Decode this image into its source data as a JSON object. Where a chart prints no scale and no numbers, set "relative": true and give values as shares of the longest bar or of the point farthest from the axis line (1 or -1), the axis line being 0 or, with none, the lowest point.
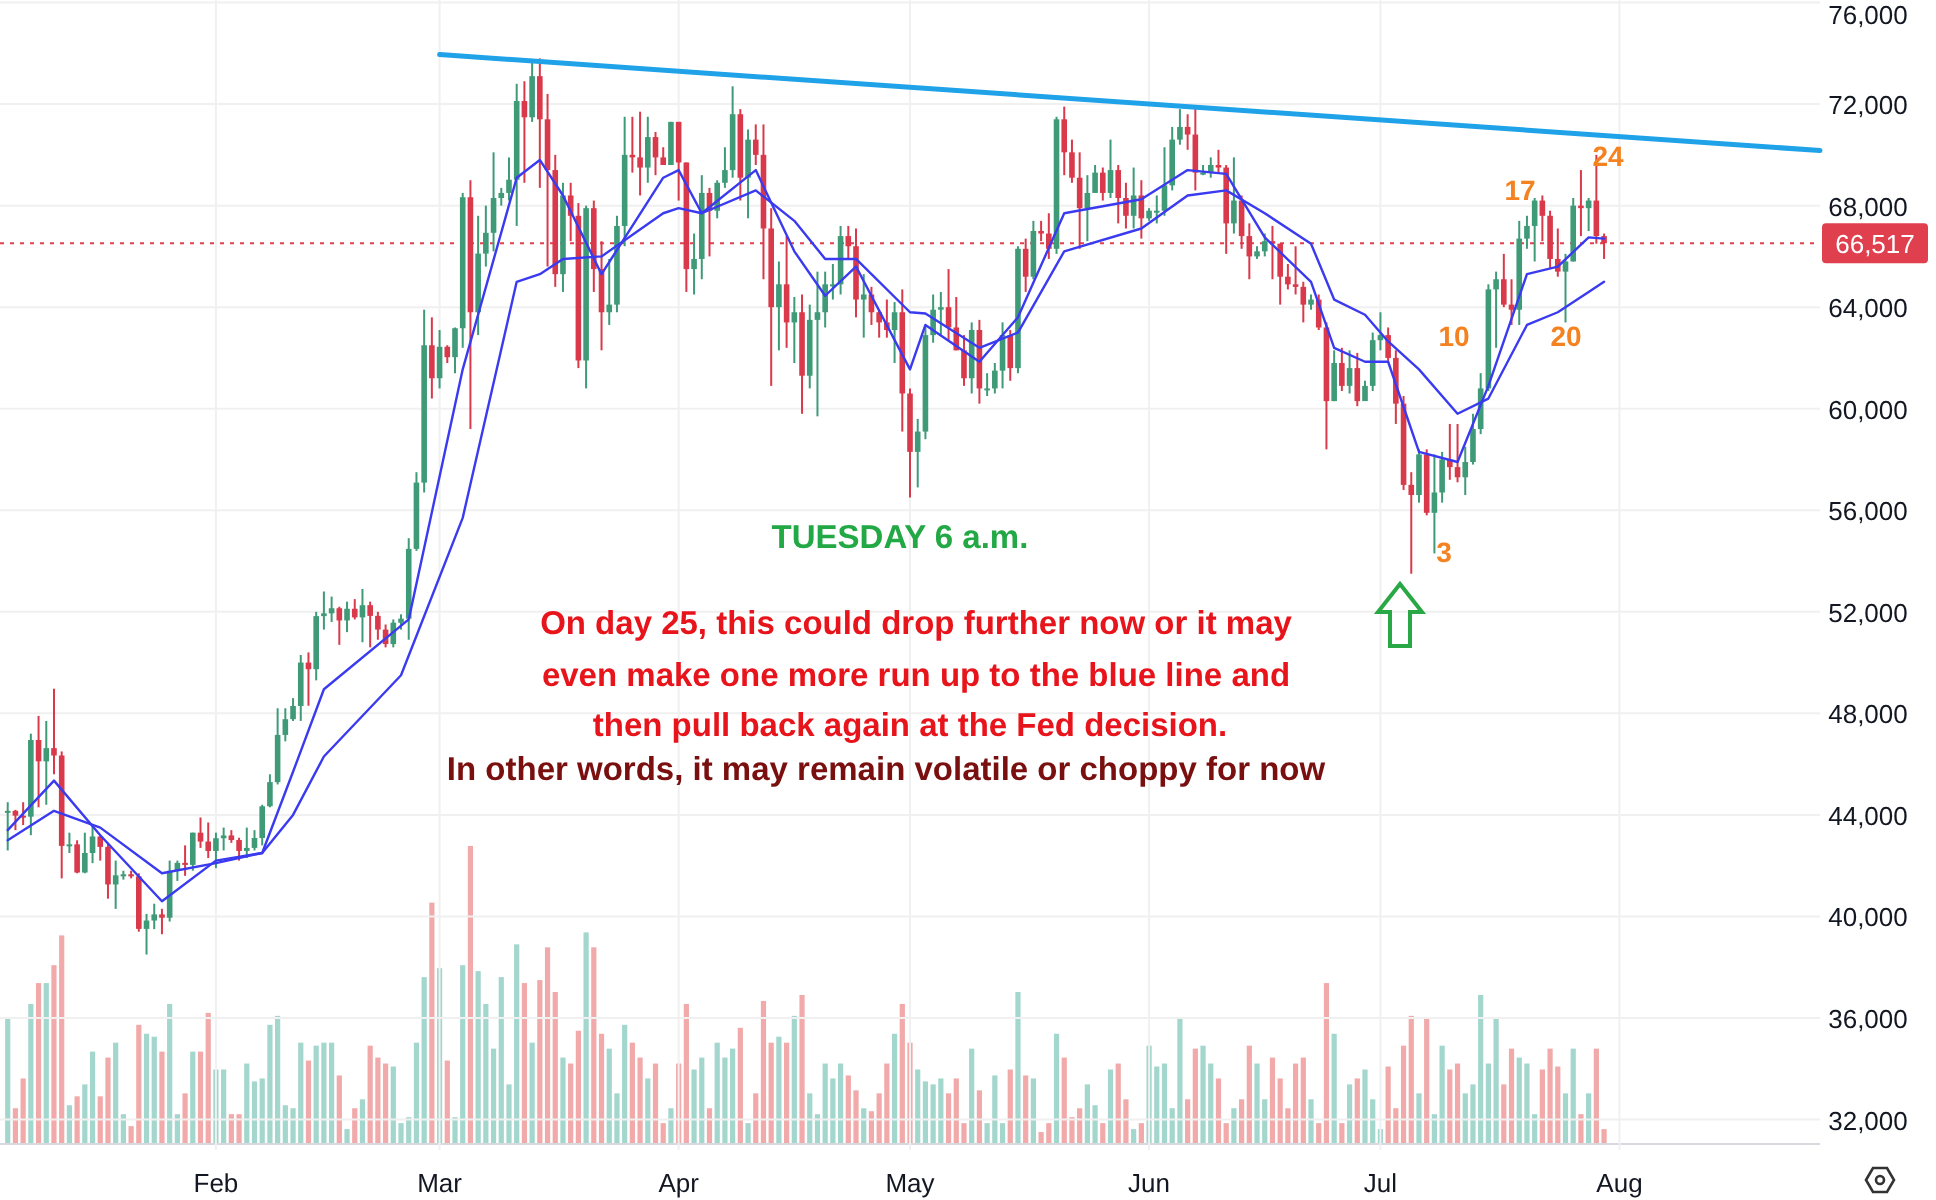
{
  "chart_data": [
    {
      "type": "candlestick",
      "xlim": [
        "--01-04",
        "--08-27"
      ],
      "ylim": [
        30800,
        76100
      ],
      "xticks": [
        {
          "value": "--02-01",
          "label": "Feb"
        },
        {
          "value": "--03-01",
          "label": "Mar"
        },
        {
          "value": "--04-01",
          "label": "Apr"
        },
        {
          "value": "--05-01",
          "label": "May"
        },
        {
          "value": "--06-01",
          "label": "Jun"
        },
        {
          "value": "--07-01",
          "label": "Jul"
        },
        {
          "value": "--08-01",
          "label": "Aug"
        }
      ],
      "yticks": [
        {
          "value": 32000,
          "label": "32,000"
        },
        {
          "value": 36000,
          "label": "36,000"
        },
        {
          "value": 40000,
          "label": "40,000"
        },
        {
          "value": 44000,
          "label": "44,000"
        },
        {
          "value": 48000,
          "label": "48,000"
        },
        {
          "value": 52000,
          "label": "52,000"
        },
        {
          "value": 56000,
          "label": "56,000"
        },
        {
          "value": 60000,
          "label": "60,000"
        },
        {
          "value": 64000,
          "label": "64,000"
        },
        {
          "value": 68000,
          "label": "68,000"
        },
        {
          "value": 72000,
          "label": "72,000"
        },
        {
          "value": 76000,
          "label": "76,000"
        }
      ],
      "grid": true,
      "x": [
        "--01-05",
        "--01-06",
        "--01-07",
        "--01-08",
        "--01-09",
        "--01-10",
        "--01-11",
        "--01-12",
        "--01-13",
        "--01-14",
        "--01-15",
        "--01-16",
        "--01-17",
        "--01-18",
        "--01-19",
        "--01-20",
        "--01-21",
        "--01-22",
        "--01-23",
        "--01-24",
        "--01-25",
        "--01-26",
        "--01-27",
        "--01-28",
        "--01-29",
        "--01-30",
        "--01-31",
        "--02-01",
        "--02-02",
        "--02-03",
        "--02-04",
        "--02-05",
        "--02-06",
        "--02-07",
        "--02-08",
        "--02-09",
        "--02-10",
        "--02-11",
        "--02-12",
        "--02-13",
        "--02-14",
        "--02-15",
        "--02-16",
        "--02-17",
        "--02-18",
        "--02-19",
        "--02-20",
        "--02-21",
        "--02-22",
        "--02-23",
        "--02-24",
        "--02-25",
        "--02-26",
        "--02-27",
        "--02-28",
        "--02-29",
        "--03-01",
        "--03-02",
        "--03-03",
        "--03-04",
        "--03-05",
        "--03-06",
        "--03-07",
        "--03-08",
        "--03-09",
        "--03-10",
        "--03-11",
        "--03-12",
        "--03-13",
        "--03-14",
        "--03-15",
        "--03-16",
        "--03-17",
        "--03-18",
        "--03-19",
        "--03-20",
        "--03-21",
        "--03-22",
        "--03-23",
        "--03-24",
        "--03-25",
        "--03-26",
        "--03-27",
        "--03-28",
        "--03-29",
        "--03-30",
        "--03-31",
        "--04-01",
        "--04-02",
        "--04-03",
        "--04-04",
        "--04-05",
        "--04-06",
        "--04-07",
        "--04-08",
        "--04-09",
        "--04-10",
        "--04-11",
        "--04-12",
        "--04-13",
        "--04-14",
        "--04-15",
        "--04-16",
        "--04-17",
        "--04-18",
        "--04-19",
        "--04-20",
        "--04-21",
        "--04-22",
        "--04-23",
        "--04-24",
        "--04-25",
        "--04-26",
        "--04-27",
        "--04-28",
        "--04-29",
        "--04-30",
        "--05-01",
        "--05-02",
        "--05-03",
        "--05-04",
        "--05-05",
        "--05-06",
        "--05-07",
        "--05-08",
        "--05-09",
        "--05-10",
        "--05-11",
        "--05-12",
        "--05-13",
        "--05-14",
        "--05-15",
        "--05-16",
        "--05-17",
        "--05-18",
        "--05-19",
        "--05-20",
        "--05-21",
        "--05-22",
        "--05-23",
        "--05-24",
        "--05-25",
        "--05-26",
        "--05-27",
        "--05-28",
        "--05-29",
        "--05-30",
        "--05-31",
        "--06-01",
        "--06-02",
        "--06-03",
        "--06-04",
        "--06-05",
        "--06-06",
        "--06-07",
        "--06-08",
        "--06-09",
        "--06-10",
        "--06-11",
        "--06-12",
        "--06-13",
        "--06-14",
        "--06-15",
        "--06-16",
        "--06-17",
        "--06-18",
        "--06-19",
        "--06-20",
        "--06-21",
        "--06-22",
        "--06-23",
        "--06-24",
        "--06-25",
        "--06-26",
        "--06-27",
        "--06-28",
        "--06-29",
        "--06-30",
        "--07-01",
        "--07-02",
        "--07-03",
        "--07-04",
        "--07-05",
        "--07-06",
        "--07-07",
        "--07-08",
        "--07-09",
        "--07-10",
        "--07-11",
        "--07-12",
        "--07-13",
        "--07-14",
        "--07-15",
        "--07-16",
        "--07-17",
        "--07-18",
        "--07-19",
        "--07-20",
        "--07-21",
        "--07-22",
        "--07-23",
        "--07-24",
        "--07-25",
        "--07-26",
        "--07-27",
        "--07-28",
        "--07-29",
        "--07-30"
      ],
      "ohlc": [
        [
          44150,
          44500,
          42600,
          44160
        ],
        [
          44160,
          44200,
          43400,
          43970
        ],
        [
          43970,
          44500,
          43600,
          43930
        ],
        [
          43930,
          47200,
          43200,
          46950
        ],
        [
          46950,
          47900,
          44300,
          46110
        ],
        [
          46110,
          47700,
          44400,
          46630
        ],
        [
          46630,
          48970,
          45600,
          46340
        ],
        [
          46340,
          46500,
          41500,
          42780
        ],
        [
          42780,
          43300,
          42500,
          42840
        ],
        [
          42840,
          43000,
          41700,
          41730
        ],
        [
          41730,
          43300,
          41700,
          42500
        ],
        [
          42500,
          43600,
          42100,
          43150
        ],
        [
          43150,
          43200,
          42200,
          42740
        ],
        [
          42740,
          42900,
          40700,
          41260
        ],
        [
          41260,
          42200,
          40300,
          41620
        ],
        [
          41620,
          41800,
          41450,
          41660
        ],
        [
          41660,
          41800,
          41500,
          41580
        ],
        [
          41580,
          41700,
          39400,
          39510
        ],
        [
          39510,
          40100,
          38500,
          39840
        ],
        [
          39840,
          40500,
          39500,
          40080
        ],
        [
          40080,
          40300,
          39300,
          39950
        ],
        [
          39950,
          42200,
          39800,
          41800
        ],
        [
          41800,
          42200,
          41400,
          42110
        ],
        [
          42110,
          42800,
          41600,
          42030
        ],
        [
          42030,
          43300,
          41800,
          43300
        ],
        [
          43300,
          43900,
          42700,
          42950
        ],
        [
          42950,
          43700,
          42300,
          42580
        ],
        [
          42580,
          43300,
          41900,
          43080
        ],
        [
          43080,
          43500,
          42600,
          43190
        ],
        [
          43190,
          43400,
          42900,
          43010
        ],
        [
          43010,
          43100,
          42200,
          42580
        ],
        [
          42580,
          43500,
          42300,
          42700
        ],
        [
          42700,
          43400,
          42600,
          43090
        ],
        [
          43090,
          44400,
          42800,
          44340
        ],
        [
          44340,
          45600,
          44300,
          45290
        ],
        [
          45290,
          48200,
          45200,
          47150
        ],
        [
          47150,
          48200,
          46900,
          47770
        ],
        [
          47770,
          48600,
          47700,
          48290
        ],
        [
          48290,
          50300,
          47700,
          50000
        ],
        [
          50000,
          50400,
          48300,
          49740
        ],
        [
          49740,
          52000,
          49300,
          51830
        ],
        [
          51830,
          52800,
          51300,
          51940
        ],
        [
          51940,
          52600,
          51600,
          52140
        ],
        [
          52140,
          52200,
          50700,
          51660
        ],
        [
          51660,
          52400,
          51200,
          52120
        ],
        [
          52120,
          52500,
          51700,
          51780
        ],
        [
          51780,
          52900,
          50800,
          52260
        ],
        [
          52260,
          52400,
          50600,
          51840
        ],
        [
          51840,
          52000,
          50900,
          51300
        ],
        [
          51300,
          51500,
          50600,
          50730
        ],
        [
          50730,
          51700,
          50600,
          51570
        ],
        [
          51570,
          51900,
          51300,
          51730
        ],
        [
          51730,
          54900,
          50900,
          54480
        ],
        [
          54480,
          57500,
          54400,
          57090
        ],
        [
          57090,
          63900,
          56700,
          62500
        ],
        [
          62500,
          63600,
          60400,
          61200
        ],
        [
          61200,
          63100,
          60800,
          62440
        ],
        [
          62440,
          62500,
          61800,
          62030
        ],
        [
          62030,
          63200,
          61400,
          63170
        ],
        [
          63170,
          68500,
          62400,
          68330
        ],
        [
          68330,
          69000,
          59200,
          63800
        ],
        [
          63800,
          67600,
          62900,
          66110
        ],
        [
          66110,
          68000,
          65600,
          66930
        ],
        [
          66930,
          70100,
          66200,
          68300
        ],
        [
          68300,
          68700,
          68000,
          68500
        ],
        [
          68500,
          69900,
          68200,
          69020
        ],
        [
          69020,
          72800,
          67200,
          72120
        ],
        [
          72120,
          72900,
          68900,
          71480
        ],
        [
          71480,
          73700,
          71300,
          73100
        ],
        [
          73100,
          73800,
          68700,
          71400
        ],
        [
          71400,
          72400,
          65600,
          69400
        ],
        [
          69400,
          70000,
          64800,
          65300
        ],
        [
          65300,
          68900,
          64600,
          68400
        ],
        [
          68400,
          68900,
          66600,
          67600
        ],
        [
          67600,
          68100,
          61600,
          61900
        ],
        [
          61900,
          68000,
          60800,
          67900
        ],
        [
          67900,
          68200,
          64600,
          65500
        ],
        [
          65500,
          66600,
          62300,
          63800
        ],
        [
          63800,
          65900,
          63300,
          64100
        ],
        [
          64100,
          67600,
          63800,
          67200
        ],
        [
          67200,
          71500,
          66400,
          70000
        ],
        [
          70000,
          71500,
          69300,
          69900
        ],
        [
          69900,
          71700,
          68400,
          69500
        ],
        [
          69500,
          71500,
          68900,
          70700
        ],
        [
          70700,
          70900,
          69200,
          69900
        ],
        [
          69900,
          70300,
          69600,
          69600
        ],
        [
          69600,
          71300,
          69600,
          71300
        ],
        [
          71300,
          71300,
          68200,
          69700
        ],
        [
          69700,
          69700,
          64600,
          65500
        ],
        [
          65500,
          66900,
          64500,
          65900
        ],
        [
          65900,
          69200,
          65100,
          68500
        ],
        [
          68500,
          68700,
          66000,
          67800
        ],
        [
          67800,
          69000,
          67500,
          68900
        ],
        [
          68900,
          70300,
          68700,
          69400
        ],
        [
          69400,
          72700,
          69100,
          71600
        ],
        [
          71600,
          71800,
          68200,
          69100
        ],
        [
          69100,
          71000,
          67500,
          70600
        ],
        [
          70600,
          71200,
          69600,
          70000
        ],
        [
          70000,
          71200,
          65100,
          67100
        ],
        [
          67100,
          67900,
          60900,
          64000
        ],
        [
          64000,
          65800,
          62300,
          64900
        ],
        [
          64900,
          66800,
          62400,
          63400
        ],
        [
          63400,
          64400,
          61800,
          63800
        ],
        [
          63800,
          64500,
          59800,
          61300
        ],
        [
          61300,
          64100,
          60800,
          63500
        ],
        [
          63500,
          65400,
          59700,
          63800
        ],
        [
          63800,
          65400,
          63200,
          64900
        ],
        [
          64900,
          65700,
          64300,
          64900
        ],
        [
          64900,
          67200,
          64500,
          66800
        ],
        [
          66800,
          67200,
          65900,
          66400
        ],
        [
          66400,
          67100,
          63600,
          64300
        ],
        [
          64300,
          65300,
          62800,
          64500
        ],
        [
          64500,
          64800,
          63300,
          63800
        ],
        [
          63800,
          63900,
          62800,
          63400
        ],
        [
          63400,
          64300,
          62800,
          63100
        ],
        [
          63100,
          64200,
          61800,
          63800
        ],
        [
          63800,
          64700,
          59100,
          60600
        ],
        [
          60600,
          60800,
          56500,
          58300
        ],
        [
          58300,
          59600,
          56900,
          59100
        ],
        [
          59100,
          63300,
          58800,
          62900
        ],
        [
          62900,
          64500,
          62600,
          63900
        ],
        [
          63900,
          64600,
          62900,
          64000
        ],
        [
          64000,
          65500,
          62700,
          63200
        ],
        [
          63200,
          64400,
          62300,
          62300
        ],
        [
          62300,
          62900,
          60900,
          61200
        ],
        [
          61200,
          63400,
          60600,
          63100
        ],
        [
          63100,
          63500,
          60200,
          60800
        ],
        [
          60800,
          61400,
          60500,
          60800
        ],
        [
          60800,
          61800,
          60600,
          61500
        ],
        [
          61500,
          63400,
          60800,
          62900
        ],
        [
          62900,
          63100,
          61100,
          61600
        ],
        [
          61600,
          66400,
          61400,
          66300
        ],
        [
          66300,
          66700,
          64600,
          65200
        ],
        [
          65200,
          67400,
          65100,
          67000
        ],
        [
          67000,
          67400,
          66600,
          66900
        ],
        [
          66900,
          67700,
          65900,
          66300
        ],
        [
          66300,
          71500,
          66100,
          71400
        ],
        [
          71400,
          71900,
          69200,
          70100
        ],
        [
          70100,
          70600,
          68900,
          69100
        ],
        [
          69100,
          70100,
          66300,
          67900
        ],
        [
          67900,
          69200,
          66600,
          68500
        ],
        [
          68500,
          69600,
          68500,
          69300
        ],
        [
          69300,
          69500,
          68200,
          68500
        ],
        [
          68500,
          70600,
          68300,
          69400
        ],
        [
          69400,
          69600,
          67300,
          68300
        ],
        [
          68300,
          68900,
          67100,
          67600
        ],
        [
          67600,
          69500,
          67100,
          68400
        ],
        [
          68400,
          69000,
          66700,
          67500
        ],
        [
          67500,
          67900,
          67400,
          67800
        ],
        [
          67800,
          68400,
          67300,
          67800
        ],
        [
          67800,
          70300,
          67600,
          68800
        ],
        [
          68800,
          71100,
          68600,
          70600
        ],
        [
          70600,
          71800,
          70400,
          71100
        ],
        [
          71100,
          71600,
          70200,
          70800
        ],
        [
          70800,
          71900,
          68600,
          69300
        ],
        [
          69300,
          69600,
          69200,
          69300
        ],
        [
          69300,
          69900,
          69100,
          69600
        ],
        [
          69600,
          70200,
          69300,
          69500
        ],
        [
          69500,
          69600,
          66100,
          67300
        ],
        [
          67300,
          69900,
          66900,
          68200
        ],
        [
          68200,
          68400,
          66300,
          66800
        ],
        [
          66800,
          67300,
          65100,
          66000
        ],
        [
          66000,
          66400,
          65900,
          66200
        ],
        [
          66200,
          66900,
          66000,
          66600
        ],
        [
          66600,
          67200,
          65100,
          66500
        ],
        [
          66500,
          66500,
          64100,
          65200
        ],
        [
          65200,
          65700,
          64700,
          64900
        ],
        [
          64900,
          66400,
          64500,
          64800
        ],
        [
          64800,
          65000,
          63400,
          64100
        ],
        [
          64100,
          64500,
          63900,
          64300
        ],
        [
          64300,
          64500,
          63100,
          63200
        ],
        [
          63200,
          63400,
          58400,
          60300
        ],
        [
          60300,
          62300,
          60300,
          61800
        ],
        [
          61800,
          62400,
          60700,
          60900
        ],
        [
          60900,
          62300,
          60600,
          61600
        ],
        [
          61600,
          62200,
          60100,
          60300
        ],
        [
          60300,
          61100,
          60300,
          60900
        ],
        [
          60900,
          63000,
          60700,
          62700
        ],
        [
          62700,
          63800,
          62300,
          62900
        ],
        [
          62900,
          63200,
          61800,
          62000
        ],
        [
          62000,
          62300,
          59400,
          60200
        ],
        [
          60200,
          60500,
          56800,
          57000
        ],
        [
          57000,
          57500,
          53500,
          56600
        ],
        [
          56600,
          58400,
          56300,
          58200
        ],
        [
          58200,
          58400,
          55800,
          55900
        ],
        [
          55900,
          58200,
          54300,
          56700
        ],
        [
          56700,
          58300,
          56300,
          58000
        ],
        [
          58000,
          59400,
          57200,
          57700
        ],
        [
          57700,
          59400,
          57100,
          57300
        ],
        [
          57300,
          58500,
          56600,
          57900
        ],
        [
          57900,
          59800,
          57800,
          59200
        ],
        [
          59200,
          61400,
          59000,
          60800
        ],
        [
          60800,
          64900,
          60700,
          64700
        ],
        [
          64700,
          65400,
          62400,
          65100
        ],
        [
          65100,
          66100,
          64000,
          64100
        ],
        [
          64100,
          65100,
          63300,
          63900
        ],
        [
          63900,
          67400,
          63300,
          66700
        ],
        [
          66700,
          67600,
          66300,
          67200
        ],
        [
          67200,
          68300,
          65800,
          68200
        ],
        [
          68200,
          68400,
          66600,
          67600
        ],
        [
          67600,
          67800,
          65500,
          65900
        ],
        [
          65900,
          67100,
          65200,
          65400
        ],
        [
          65400,
          66100,
          63400,
          65800
        ],
        [
          65800,
          68300,
          65800,
          68000
        ],
        [
          68000,
          69400,
          66800,
          67900
        ],
        [
          67900,
          68300,
          67000,
          68200
        ],
        [
          68200,
          70000,
          66500,
          66800
        ],
        [
          66800,
          66900,
          65900,
          66517
        ]
      ],
      "series": [
        {
          "type": "line",
          "color": "#3a3af0",
          "x": [
            "--01-05",
            "--01-11",
            "--01-17",
            "--01-25",
            "--02-01",
            "--02-07",
            "--02-11",
            "--02-15",
            "--02-26",
            "--03-04",
            "--03-11",
            "--03-14",
            "--03-17",
            "--03-22",
            "--03-30",
            "--04-01",
            "--04-04",
            "--04-11",
            "--04-16",
            "--04-20",
            "--04-24",
            "--05-01",
            "--05-03",
            "--05-10",
            "--05-15",
            "--05-21",
            "--05-31",
            "--06-06",
            "--06-11",
            "--06-16",
            "--06-22",
            "--06-25",
            "--06-29",
            "--07-02",
            "--07-06",
            "--07-11",
            "--07-15",
            "--07-20",
            "--07-24",
            "--07-28",
            "--07-30"
          ],
          "values": [
            43400,
            45350,
            43200,
            40600,
            42200,
            42500,
            45700,
            48950,
            51700,
            61550,
            69100,
            69800,
            68400,
            65300,
            69100,
            69400,
            67700,
            69400,
            66200,
            64450,
            65600,
            61550,
            63300,
            61850,
            63600,
            67700,
            68250,
            69400,
            69250,
            66750,
            65000,
            62400,
            61850,
            61850,
            58300,
            57900,
            60900,
            65300,
            65600,
            66750,
            66700
          ]
        },
        {
          "type": "line",
          "color": "#3a3af0",
          "x": [
            "--01-05",
            "--01-11",
            "--01-17",
            "--01-25",
            "--02-01",
            "--02-07",
            "--02-11",
            "--02-15",
            "--02-25",
            "--03-04",
            "--03-11",
            "--03-14",
            "--03-17",
            "--03-22",
            "--03-30",
            "--04-01",
            "--04-04",
            "--04-11",
            "--04-16",
            "--04-20",
            "--04-24",
            "--05-01",
            "--05-03",
            "--05-10",
            "--05-15",
            "--05-21",
            "--05-31",
            "--06-06",
            "--06-11",
            "--06-16",
            "--06-22",
            "--06-25",
            "--06-29",
            "--07-02",
            "--07-06",
            "--07-11",
            "--07-15",
            "--07-20",
            "--07-24",
            "--07-28",
            "--07-30"
          ],
          "values": [
            43000,
            44160,
            43500,
            41700,
            42100,
            42500,
            44000,
            46300,
            49500,
            55700,
            65000,
            65300,
            65900,
            66000,
            67700,
            67900,
            67700,
            68600,
            67400,
            65900,
            65900,
            63800,
            63750,
            62400,
            63000,
            66200,
            67100,
            68400,
            68600,
            67700,
            66500,
            64300,
            63700,
            62650,
            61550,
            59800,
            60400,
            63300,
            63800,
            64600,
            65000
          ]
        },
        {
          "type": "line",
          "color": "#1fa2e8",
          "x": [
            "--03-01",
            "--08-27"
          ],
          "values": [
            73950,
            70170
          ]
        }
      ],
      "ref_lines": [
        {
          "axis": "y",
          "value": 66517,
          "label": "66,517",
          "color": "#e0404e",
          "line_style": "dotted"
        }
      ],
      "annotations": [
        "3",
        "10",
        "17",
        "20",
        "24",
        "TUESDAY 6 a.m.",
        "On day 25, this could drop further now or it may",
        "even make one more run up to the blue line and",
        "then pull back again at the Fed decision.",
        "In other words, it may remain volatile or choppy  for now"
      ]
    },
    {
      "type": "bar",
      "relative": true,
      "categories": [
        null,
        null,
        null,
        null,
        null,
        null,
        null,
        null,
        null,
        null,
        null,
        null,
        null,
        null,
        null,
        null,
        null,
        null,
        null,
        null,
        null,
        null,
        null,
        null,
        null,
        null,
        null,
        null,
        null,
        null,
        null,
        null,
        null,
        null,
        null,
        null,
        null,
        null,
        null,
        null,
        null,
        null,
        null,
        null,
        null,
        null,
        null,
        null,
        null,
        null,
        null,
        null,
        null,
        null,
        null,
        null,
        null,
        null,
        null,
        null,
        null,
        null,
        null,
        null,
        null,
        null,
        null,
        null,
        null,
        null,
        null,
        null,
        null,
        null,
        null,
        null,
        null,
        null,
        null,
        null,
        null,
        null,
        null,
        null,
        null,
        null,
        null,
        null,
        null,
        null,
        null,
        null,
        null,
        null,
        null,
        null,
        null,
        null,
        null,
        null,
        null,
        null,
        null,
        null,
        null,
        null,
        null,
        null,
        null,
        null,
        null,
        null,
        null,
        null,
        null,
        null,
        null,
        null,
        null,
        null,
        null,
        null,
        null,
        null,
        null,
        null,
        null,
        null,
        null,
        null,
        null,
        null,
        null,
        null,
        null,
        null,
        null,
        null,
        null,
        null,
        null,
        null,
        null,
        null,
        null,
        null,
        null,
        null,
        null,
        null,
        null,
        null,
        null,
        null,
        null,
        null,
        null,
        null,
        null,
        null,
        null,
        null,
        null,
        null,
        null,
        null,
        null,
        null,
        null,
        null,
        null,
        null,
        null,
        null,
        null,
        null,
        null,
        null,
        null,
        null,
        null,
        null,
        null,
        null,
        null,
        null,
        null,
        null,
        null,
        null,
        null,
        null,
        null,
        null,
        null,
        null,
        null,
        null,
        null,
        null,
        null,
        null,
        null,
        null,
        null,
        null,
        null,
        null
      ],
      "values": [
        0.42,
        0.12,
        0.22,
        0.47,
        0.54,
        0.54,
        0.6,
        0.7,
        0.13,
        0.16,
        0.2,
        0.31,
        0.16,
        0.29,
        0.34,
        0.1,
        0.06,
        0.4,
        0.37,
        0.36,
        0.31,
        0.47,
        0.1,
        0.17,
        0.31,
        0.31,
        0.44,
        0.25,
        0.25,
        0.1,
        0.1,
        0.27,
        0.21,
        0.22,
        0.4,
        0.43,
        0.13,
        0.12,
        0.34,
        0.28,
        0.33,
        0.34,
        0.34,
        0.23,
        0.05,
        0.12,
        0.15,
        0.33,
        0.29,
        0.27,
        0.26,
        0.07,
        0.09,
        0.34,
        0.56,
        0.81,
        0.59,
        0.28,
        0.09,
        0.6,
        1,
        0.58,
        0.47,
        0.32,
        0.56,
        0.2,
        0.67,
        0.54,
        0.34,
        0.55,
        0.66,
        0.51,
        0.29,
        0.27,
        0.38,
        0.71,
        0.66,
        0.37,
        0.32,
        0.17,
        0.4,
        0.34,
        0.29,
        0.22,
        0.27,
        0.07,
        0.12,
        0.27,
        0.47,
        0.25,
        0.29,
        0.12,
        0.34,
        0.29,
        0.32,
        0.39,
        0.07,
        0.17,
        0.48,
        0.34,
        0.36,
        0.34,
        0.43,
        0.5,
        0.17,
        0.1,
        0.27,
        0.22,
        0.27,
        0.23,
        0.18,
        0.12,
        0.11,
        0.17,
        0.27,
        0.37,
        0.47,
        0.34,
        0.25,
        0.21,
        0.2,
        0.22,
        0.17,
        0.22,
        0.07,
        0.32,
        0.18,
        0.07,
        0.23,
        0.07,
        0.25,
        0.51,
        0.23,
        0.22,
        0.04,
        0.07,
        0.37,
        0.29,
        0.09,
        0.12,
        0.2,
        0.13,
        0.07,
        0.25,
        0.27,
        0.15,
        0.05,
        0.07,
        0.33,
        0.26,
        0.27,
        0.12,
        0.42,
        0.15,
        0.32,
        0.33,
        0.27,
        0.22,
        0.07,
        0.12,
        0.15,
        0.33,
        0.27,
        0.15,
        0.29,
        0.22,
        0.12,
        0.27,
        0.29,
        0.15,
        0.07,
        0.54,
        0.37,
        0.07,
        0.2,
        0.22,
        0.25,
        0.15,
        0.05,
        0.26,
        0.12,
        0.33,
        0.43,
        0.17,
        0.42,
        0.1,
        0.33,
        0.25,
        0.27,
        0.17,
        0.2,
        0.5,
        0.27,
        0.42,
        0.2,
        0.32,
        0.29,
        0.27,
        0.1,
        0.25,
        0.32,
        0.26,
        0.17,
        0.32,
        0.1,
        0.17,
        0.32,
        0.05
      ],
      "colors": [
        "#a3d6cc",
        "#f1a9a9",
        "#f1a9a9",
        "#a3d6cc",
        "#f1a9a9",
        "#a3d6cc",
        "#f1a9a9",
        "#f1a9a9",
        "#a3d6cc",
        "#f1a9a9",
        "#a3d6cc",
        "#a3d6cc",
        "#f1a9a9",
        "#f1a9a9",
        "#a3d6cc",
        "#a3d6cc",
        "#f1a9a9",
        "#f1a9a9",
        "#a3d6cc",
        "#a3d6cc",
        "#f1a9a9",
        "#a3d6cc",
        "#a3d6cc",
        "#f1a9a9",
        "#a3d6cc",
        "#f1a9a9",
        "#f1a9a9",
        "#a3d6cc",
        "#a3d6cc",
        "#f1a9a9",
        "#f1a9a9",
        "#a3d6cc",
        "#a3d6cc",
        "#a3d6cc",
        "#a3d6cc",
        "#a3d6cc",
        "#a3d6cc",
        "#a3d6cc",
        "#a3d6cc",
        "#f1a9a9",
        "#a3d6cc",
        "#a3d6cc",
        "#a3d6cc",
        "#f1a9a9",
        "#a3d6cc",
        "#f1a9a9",
        "#a3d6cc",
        "#f1a9a9",
        "#f1a9a9",
        "#f1a9a9",
        "#a3d6cc",
        "#a3d6cc",
        "#a3d6cc",
        "#a3d6cc",
        "#a3d6cc",
        "#f1a9a9",
        "#a3d6cc",
        "#f1a9a9",
        "#a3d6cc",
        "#a3d6cc",
        "#f1a9a9",
        "#a3d6cc",
        "#a3d6cc",
        "#a3d6cc",
        "#a3d6cc",
        "#a3d6cc",
        "#a3d6cc",
        "#f1a9a9",
        "#a3d6cc",
        "#f1a9a9",
        "#f1a9a9",
        "#f1a9a9",
        "#a3d6cc",
        "#f1a9a9",
        "#f1a9a9",
        "#a3d6cc",
        "#f1a9a9",
        "#f1a9a9",
        "#a3d6cc",
        "#a3d6cc",
        "#a3d6cc",
        "#f1a9a9",
        "#f1a9a9",
        "#a3d6cc",
        "#f1a9a9",
        "#f1a9a9",
        "#a3d6cc",
        "#f1a9a9",
        "#f1a9a9",
        "#a3d6cc",
        "#a3d6cc",
        "#f1a9a9",
        "#a3d6cc",
        "#a3d6cc",
        "#a3d6cc",
        "#f1a9a9",
        "#a3d6cc",
        "#f1a9a9",
        "#f1a9a9",
        "#f1a9a9",
        "#a3d6cc",
        "#f1a9a9",
        "#a3d6cc",
        "#f1a9a9",
        "#a3d6cc",
        "#a3d6cc",
        "#a3d6cc",
        "#a3d6cc",
        "#a3d6cc",
        "#f1a9a9",
        "#f1a9a9",
        "#a3d6cc",
        "#f1a9a9",
        "#f1a9a9",
        "#f1a9a9",
        "#a3d6cc",
        "#f1a9a9",
        "#f1a9a9",
        "#a3d6cc",
        "#a3d6cc",
        "#a3d6cc",
        "#a3d6cc",
        "#f1a9a9",
        "#f1a9a9",
        "#f1a9a9",
        "#a3d6cc",
        "#f1a9a9",
        "#a3d6cc",
        "#a3d6cc",
        "#a3d6cc",
        "#f1a9a9",
        "#a3d6cc",
        "#f1a9a9",
        "#a3d6cc",
        "#f1a9a9",
        "#f1a9a9",
        "#a3d6cc",
        "#f1a9a9",
        "#f1a9a9",
        "#f1a9a9",
        "#a3d6cc",
        "#a3d6cc",
        "#f1a9a9",
        "#a3d6cc",
        "#f1a9a9",
        "#f1a9a9",
        "#a3d6cc",
        "#f1a9a9",
        "#a3d6cc",
        "#a3d6cc",
        "#a3d6cc",
        "#a3d6cc",
        "#a3d6cc",
        "#f1a9a9",
        "#f1a9a9",
        "#a3d6cc",
        "#a3d6cc",
        "#f1a9a9",
        "#f1a9a9",
        "#a3d6cc",
        "#f1a9a9",
        "#f1a9a9",
        "#a3d6cc",
        "#a3d6cc",
        "#f1a9a9",
        "#f1a9a9",
        "#f1a9a9",
        "#f1a9a9",
        "#f1a9a9",
        "#a3d6cc",
        "#f1a9a9",
        "#f1a9a9",
        "#a3d6cc",
        "#f1a9a9",
        "#a3d6cc",
        "#f1a9a9",
        "#a3d6cc",
        "#a3d6cc",
        "#a3d6cc",
        "#f1a9a9",
        "#f1a9a9",
        "#f1a9a9",
        "#f1a9a9",
        "#a3d6cc",
        "#f1a9a9",
        "#a3d6cc",
        "#a3d6cc",
        "#f1a9a9",
        "#f1a9a9",
        "#a3d6cc",
        "#a3d6cc",
        "#a3d6cc",
        "#a3d6cc",
        "#a3d6cc",
        "#f1a9a9",
        "#f1a9a9",
        "#a3d6cc",
        "#a3d6cc",
        "#a3d6cc",
        "#f1a9a9",
        "#f1a9a9",
        "#f1a9a9",
        "#a3d6cc",
        "#a3d6cc",
        "#f1a9a9",
        "#a3d6cc",
        "#f1a9a9",
        "#f1a9a9"
      ]
    }
  ]
}
